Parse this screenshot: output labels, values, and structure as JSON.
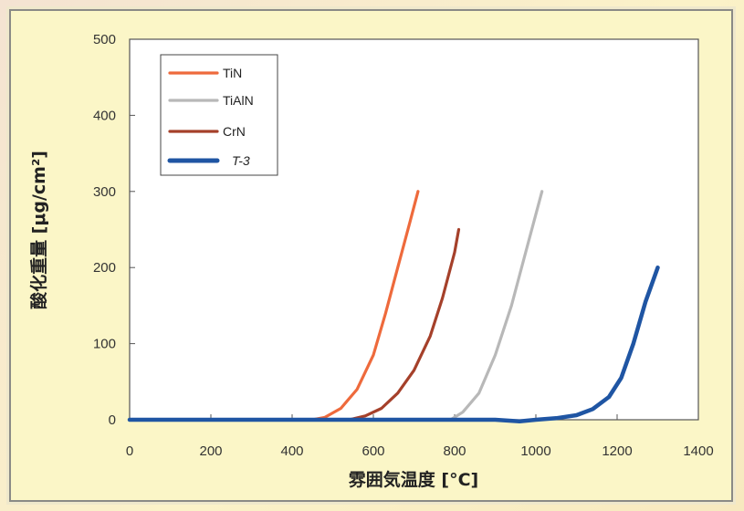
{
  "chart_data": {
    "type": "line",
    "xlabel": "雰囲気温度 [°C]",
    "ylabel": "酸化重量 [μg/cm²]",
    "xlim": [
      0,
      1400
    ],
    "ylim": [
      0,
      500
    ],
    "x_ticks": [
      "0",
      "200",
      "400",
      "600",
      "800",
      "1000",
      "1200",
      "1400"
    ],
    "y_ticks": [
      "0",
      "100",
      "200",
      "300",
      "400",
      "500"
    ],
    "grid": false,
    "legend_position": "top-left",
    "series": [
      {
        "name": "TiN",
        "color": "#ee6a3c",
        "x": [
          0,
          450,
          480,
          520,
          560,
          600,
          630,
          660,
          690,
          710
        ],
        "y": [
          0,
          0,
          3,
          15,
          40,
          85,
          140,
          200,
          260,
          300
        ]
      },
      {
        "name": "TiAlN",
        "color": "#b8b8b8",
        "x": [
          0,
          790,
          820,
          860,
          900,
          940,
          970,
          1000,
          1015
        ],
        "y": [
          0,
          0,
          10,
          35,
          85,
          150,
          210,
          270,
          300
        ]
      },
      {
        "name": "CrN",
        "color": "#a5402a",
        "x": [
          0,
          540,
          580,
          620,
          660,
          700,
          740,
          770,
          800,
          810
        ],
        "y": [
          0,
          0,
          5,
          15,
          35,
          65,
          110,
          160,
          220,
          250
        ]
      },
      {
        "name": "T-3",
        "color": "#1f55a3",
        "x": [
          0,
          900,
          960,
          1000,
          1050,
          1100,
          1140,
          1180,
          1210,
          1240,
          1270,
          1300
        ],
        "y": [
          0,
          0,
          -2,
          0,
          2,
          6,
          14,
          30,
          55,
          100,
          155,
          200
        ]
      }
    ]
  }
}
